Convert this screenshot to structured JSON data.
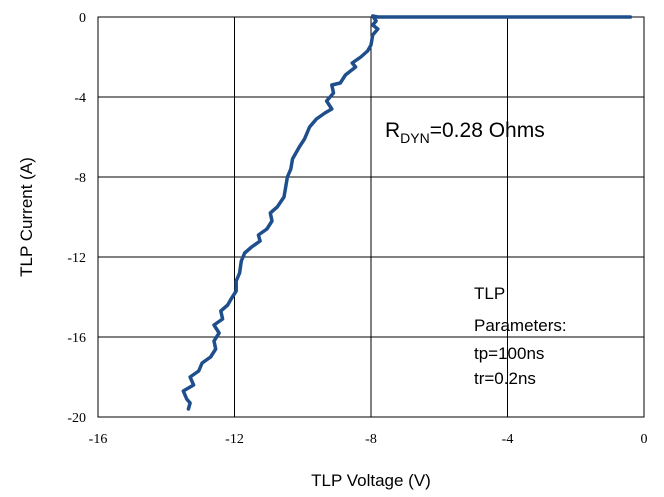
{
  "chart_data": {
    "type": "line",
    "xlabel": "TLP Voltage (V)",
    "ylabel": "TLP Current (A)",
    "xlim": [
      -16,
      0
    ],
    "ylim": [
      -20,
      0
    ],
    "xticks": [
      -16,
      -12,
      -8,
      -4,
      0
    ],
    "yticks": [
      0,
      -4,
      -8,
      -12,
      -16,
      -20
    ],
    "grid": true,
    "annotation": {
      "main": "R",
      "sub": "DYN",
      "rest": "=0.28 Ohms"
    },
    "params_text": [
      "TLP",
      "Parameters:",
      "tp=100ns",
      "tr=0.2ns"
    ],
    "series": [
      {
        "color": "#1f4e8c",
        "points": [
          [
            -0.4,
            0.0
          ],
          [
            -4.0,
            0.0
          ],
          [
            -7.8,
            0.0
          ],
          [
            -7.95,
            0.05
          ],
          [
            -7.85,
            -0.2
          ],
          [
            -7.95,
            -0.4
          ],
          [
            -7.8,
            -0.6
          ],
          [
            -7.95,
            -0.9
          ],
          [
            -8.0,
            -1.4
          ],
          [
            -8.1,
            -1.7
          ],
          [
            -8.3,
            -2.0
          ],
          [
            -8.55,
            -2.3
          ],
          [
            -8.45,
            -2.5
          ],
          [
            -8.75,
            -2.9
          ],
          [
            -8.9,
            -3.3
          ],
          [
            -9.15,
            -3.4
          ],
          [
            -9.1,
            -3.8
          ],
          [
            -9.3,
            -4.2
          ],
          [
            -9.15,
            -4.6
          ],
          [
            -9.35,
            -4.8
          ],
          [
            -9.6,
            -5.1
          ],
          [
            -9.8,
            -5.5
          ],
          [
            -9.95,
            -6.1
          ],
          [
            -10.1,
            -6.5
          ],
          [
            -10.3,
            -7.1
          ],
          [
            -10.35,
            -7.6
          ],
          [
            -10.45,
            -8.0
          ],
          [
            -10.5,
            -8.5
          ],
          [
            -10.55,
            -9.0
          ],
          [
            -10.75,
            -9.5
          ],
          [
            -10.95,
            -9.8
          ],
          [
            -10.9,
            -10.2
          ],
          [
            -11.05,
            -10.6
          ],
          [
            -11.3,
            -10.9
          ],
          [
            -11.25,
            -11.2
          ],
          [
            -11.5,
            -11.5
          ],
          [
            -11.7,
            -11.8
          ],
          [
            -11.8,
            -12.2
          ],
          [
            -11.85,
            -12.8
          ],
          [
            -11.95,
            -13.2
          ],
          [
            -11.95,
            -13.7
          ],
          [
            -12.1,
            -14.1
          ],
          [
            -12.2,
            -14.4
          ],
          [
            -12.4,
            -14.7
          ],
          [
            -12.35,
            -15.1
          ],
          [
            -12.6,
            -15.4
          ],
          [
            -12.45,
            -15.8
          ],
          [
            -12.6,
            -16.2
          ],
          [
            -12.55,
            -16.6
          ],
          [
            -12.7,
            -17.0
          ],
          [
            -12.95,
            -17.3
          ],
          [
            -13.05,
            -17.7
          ],
          [
            -13.3,
            -18.0
          ],
          [
            -13.2,
            -18.4
          ],
          [
            -13.5,
            -18.7
          ],
          [
            -13.4,
            -19.1
          ],
          [
            -13.3,
            -19.3
          ],
          [
            -13.35,
            -19.6
          ]
        ]
      }
    ]
  }
}
